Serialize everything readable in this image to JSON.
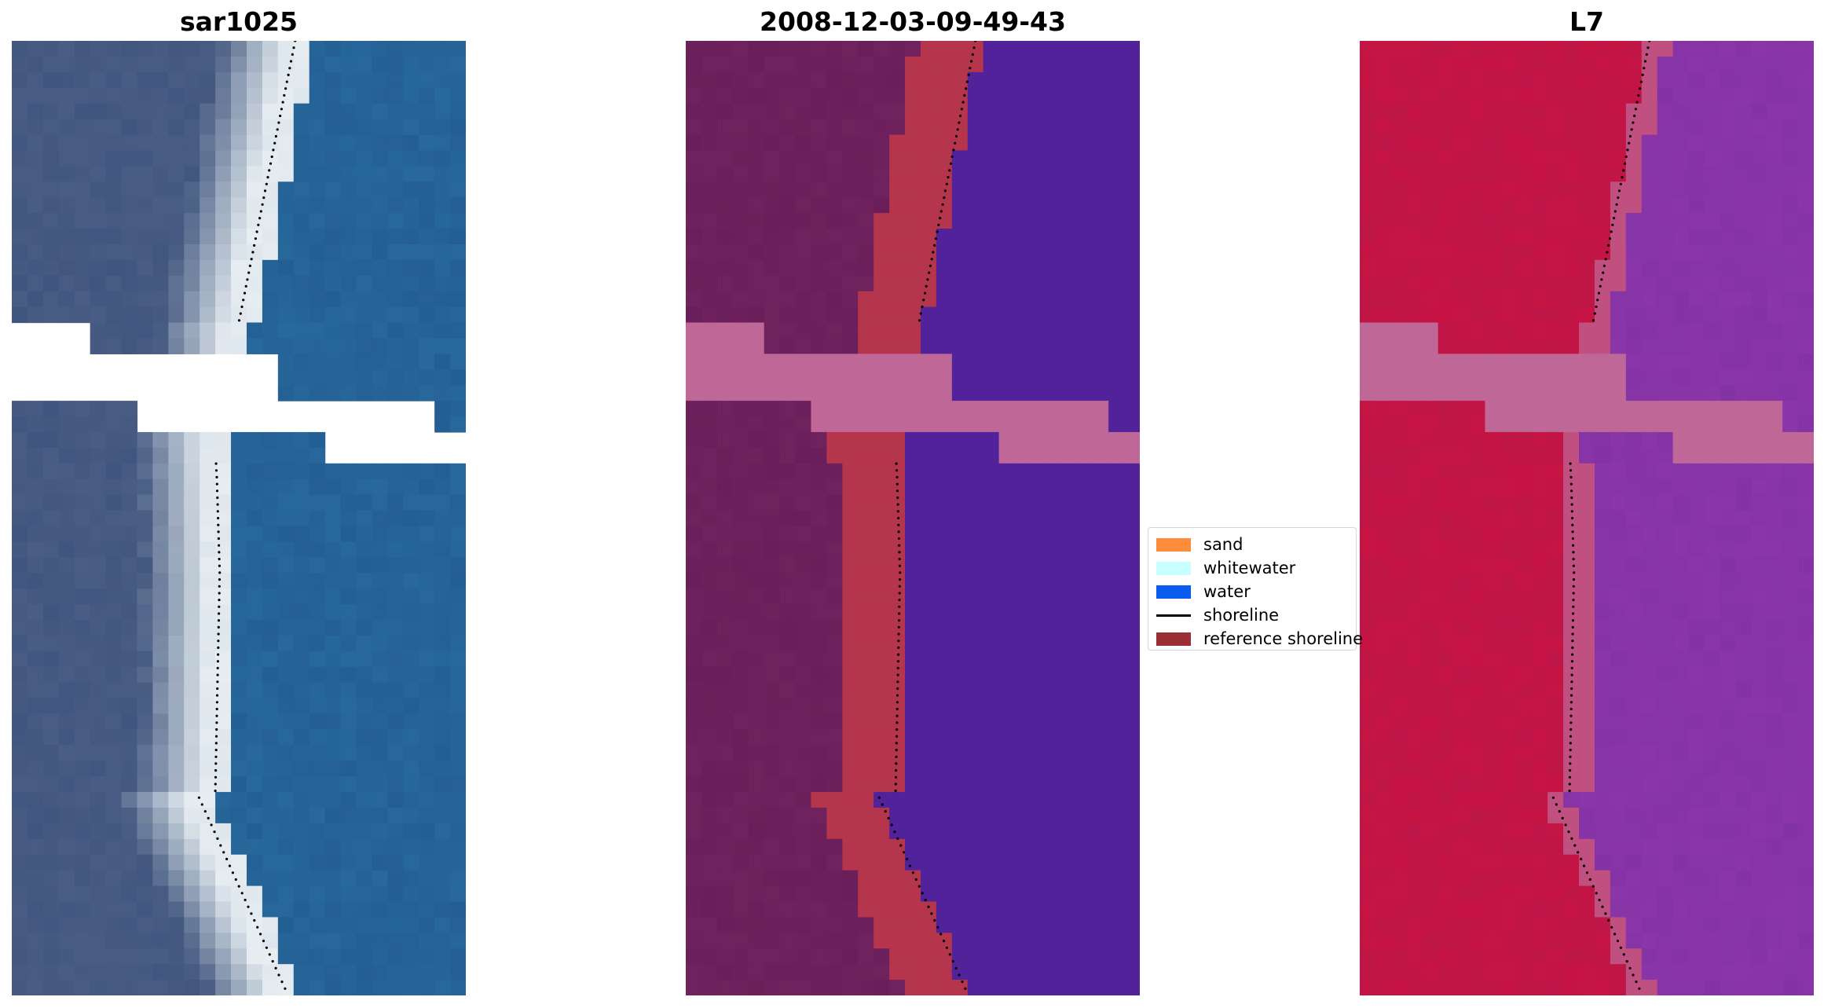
{
  "panels": [
    {
      "title": "sar1025",
      "style": "rgb"
    },
    {
      "title": "2008-12-03-09-49-43",
      "style": "classified"
    },
    {
      "title": "L7",
      "style": "ndwi"
    }
  ],
  "legend": [
    {
      "label": "sand",
      "color": "#ff8c3a",
      "kind": "patch"
    },
    {
      "label": "whitewater",
      "color": "#c8ffff",
      "kind": "patch"
    },
    {
      "label": "water",
      "color": "#0a5cf0",
      "kind": "patch"
    },
    {
      "label": "shoreline",
      "color": "#000000",
      "kind": "line"
    },
    {
      "label": "reference shoreline",
      "color": "#9b2f36",
      "kind": "patch"
    }
  ],
  "colors": {
    "land": "#6b1f5a",
    "sand_class": "#b5354c",
    "water_class": "#52229a",
    "nodata": "#bf6898",
    "ndwi_land": "#c61444",
    "ndwi_water": "#8b36a8",
    "rgb_water": "#245f93",
    "rgb_land": "#41567e",
    "rgb_white": "#e7eef2"
  }
}
